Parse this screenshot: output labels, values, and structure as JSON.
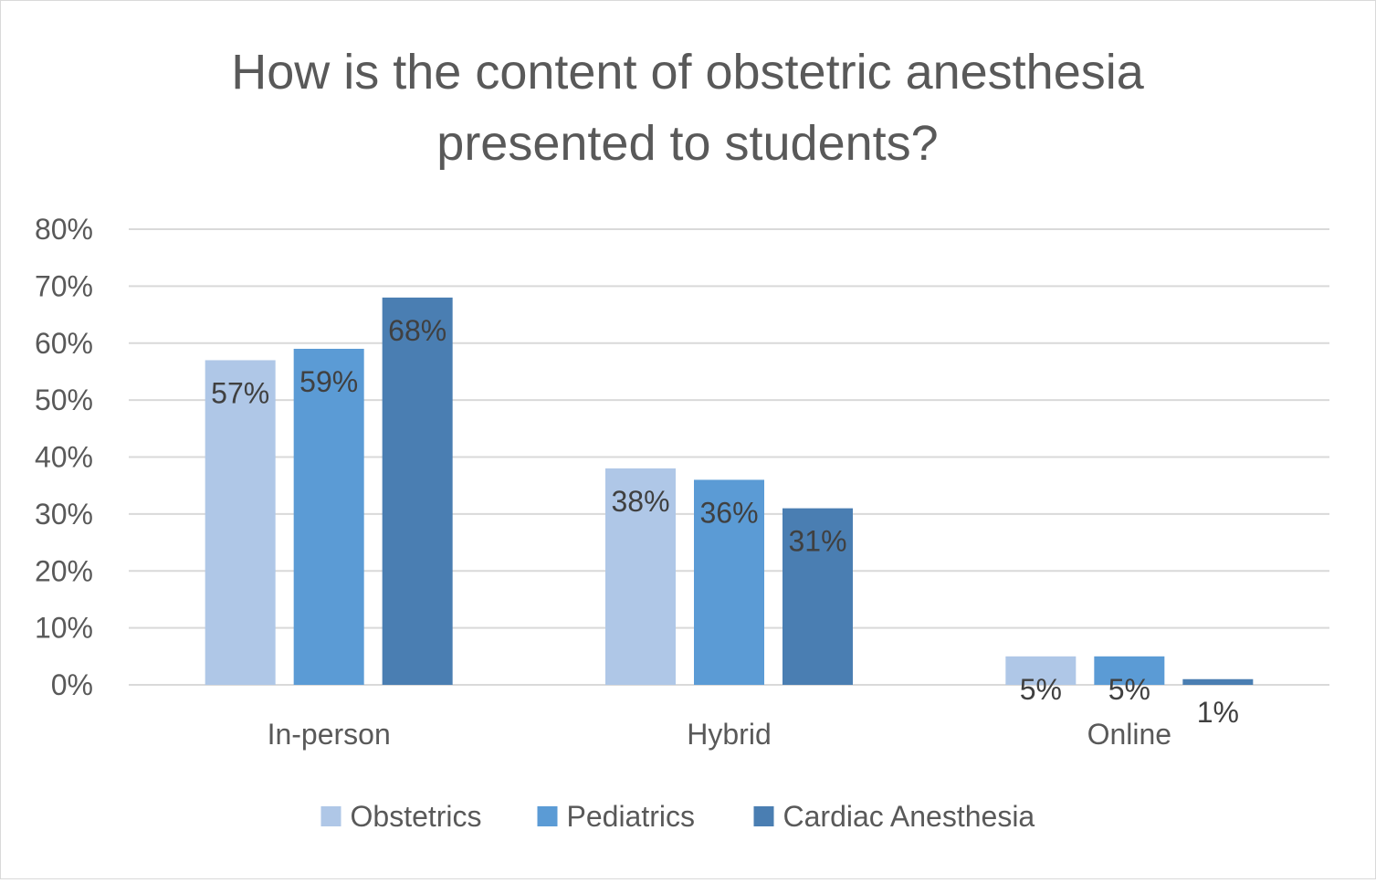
{
  "chart_data": {
    "type": "bar",
    "title_lines": [
      "How is the content of obstetric anesthesia",
      "presented to students?"
    ],
    "categories": [
      "In-person",
      "Hybrid",
      "Online"
    ],
    "series": [
      {
        "name": "Obstetrics",
        "color": "#AFC7E7",
        "values": [
          57,
          38,
          5
        ],
        "labels": [
          "57%",
          "38%",
          "5%"
        ]
      },
      {
        "name": "Pediatrics",
        "color": "#5B9BD5",
        "values": [
          59,
          36,
          5
        ],
        "labels": [
          "59%",
          "36%",
          "5%"
        ]
      },
      {
        "name": "Cardiac Anesthesia",
        "color": "#4A7EB2",
        "values": [
          68,
          31,
          1
        ],
        "labels": [
          "68%",
          "31%",
          "1%"
        ]
      }
    ],
    "ylim": [
      0,
      80
    ],
    "yticks": [
      0,
      10,
      20,
      30,
      40,
      50,
      60,
      70,
      80
    ],
    "ytick_labels": [
      "0%",
      "10%",
      "20%",
      "30%",
      "40%",
      "50%",
      "60%",
      "70%",
      "80%"
    ],
    "grid": true,
    "legend": "bottom"
  },
  "colors": {
    "text": "#595959",
    "label": "#404040",
    "grid": "#d9d9d9"
  }
}
